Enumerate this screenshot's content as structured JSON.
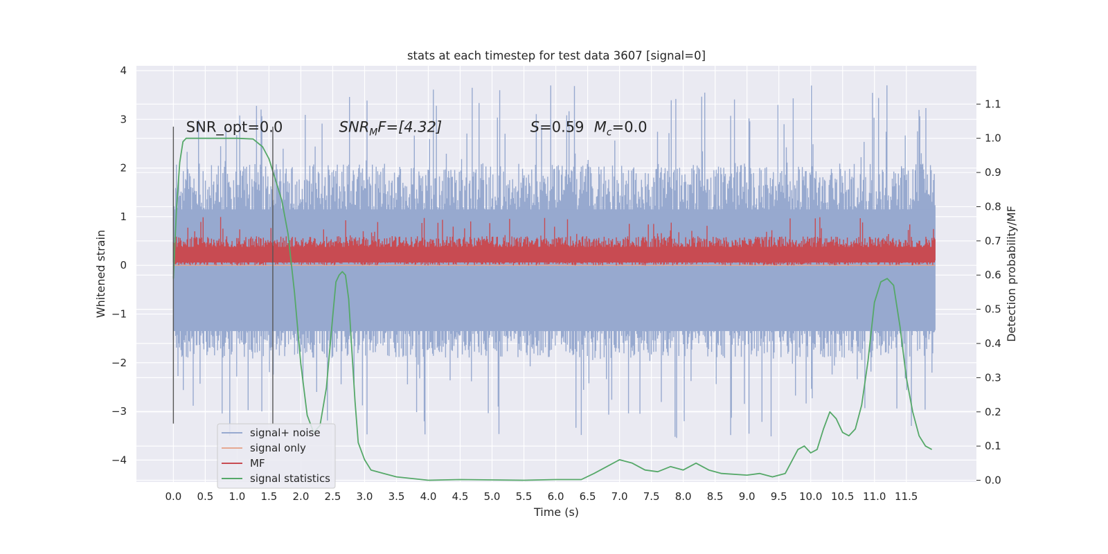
{
  "chart_data": {
    "type": "line",
    "title": "stats at each timestep for test data 3607 [signal=0]",
    "xlabel": "Time (s)",
    "ylabel": "Whitened strain",
    "y2label": "Detection probability/MF",
    "xlim": [
      -0.58,
      12.6
    ],
    "ylim": [
      -4.45,
      4.1
    ],
    "y2lim": [
      -0.005,
      1.212
    ],
    "grid": true,
    "x_ticks": [
      "0.0",
      "0.5",
      "1.0",
      "1.5",
      "2.0",
      "2.5",
      "3.0",
      "3.5",
      "4.0",
      "4.5",
      "5.0",
      "5.5",
      "6.0",
      "6.5",
      "7.0",
      "7.5",
      "8.0",
      "8.5",
      "9.0",
      "9.5",
      "10.0",
      "10.5",
      "11.0",
      "11.5"
    ],
    "y_ticks": [
      "4",
      "3",
      "2",
      "1",
      "0",
      "−1",
      "−2",
      "−3",
      "−4"
    ],
    "y2_ticks": [
      "1.1",
      "1.0",
      "0.9",
      "0.8",
      "0.7",
      "0.6",
      "0.5",
      "0.4",
      "0.3",
      "0.2",
      "0.1",
      "0.0"
    ],
    "annotations": {
      "snr_opt": "SNR_opt=0.0",
      "snr_mf_base": "SNR",
      "snr_mf_sub": "M",
      "snr_mf_rest": "F=[4.32]",
      "s_label": "S",
      "s_value": "=0.59",
      "mc_base": "M",
      "mc_sub": "c",
      "mc_value": "=0.0"
    },
    "vertical_lines_x": [
      0.0,
      1.56
    ],
    "legend_placement": "lower-left",
    "series": [
      {
        "name": "signal+ noise",
        "color": "#97a9cf",
        "time_range": [
          0.0,
          11.95
        ],
        "typical_range": [
          -1.9,
          2.1
        ],
        "extreme_min": -3.55,
        "extreme_max": 3.7
      },
      {
        "name": "signal only",
        "color": "#e6a891",
        "time_range": [
          0.0,
          11.95
        ],
        "values_constant": 0.0
      },
      {
        "name": "MF",
        "color": "#c84b52",
        "time_range": [
          0.0,
          11.95
        ],
        "typical_range": [
          0.0,
          0.6
        ],
        "extreme_max": 1.0
      },
      {
        "name": "signal statistics",
        "color": "#55a868",
        "axis": "right",
        "x": [
          0.0,
          0.05,
          0.1,
          0.15,
          0.2,
          0.3,
          0.5,
          0.75,
          1.0,
          1.25,
          1.4,
          1.5,
          1.6,
          1.7,
          1.8,
          1.9,
          2.0,
          2.1,
          2.2,
          2.3,
          2.4,
          2.5,
          2.55,
          2.6,
          2.65,
          2.7,
          2.75,
          2.8,
          2.85,
          2.9,
          3.0,
          3.1,
          3.2,
          3.3,
          3.5,
          4.0,
          4.5,
          5.0,
          5.5,
          6.0,
          6.4,
          6.6,
          6.8,
          7.0,
          7.2,
          7.4,
          7.6,
          7.8,
          8.0,
          8.2,
          8.4,
          8.6,
          9.0,
          9.2,
          9.4,
          9.6,
          9.8,
          9.9,
          10.0,
          10.1,
          10.2,
          10.3,
          10.4,
          10.5,
          10.6,
          10.7,
          10.8,
          10.9,
          11.0,
          11.1,
          11.2,
          11.3,
          11.4,
          11.5,
          11.6,
          11.7,
          11.8,
          11.9
        ],
        "values": [
          0.59,
          0.8,
          0.93,
          0.99,
          1.0,
          1.0,
          1.0,
          1.0,
          1.0,
          0.998,
          0.975,
          0.94,
          0.88,
          0.82,
          0.72,
          0.55,
          0.34,
          0.19,
          0.14,
          0.16,
          0.27,
          0.48,
          0.58,
          0.6,
          0.61,
          0.6,
          0.53,
          0.38,
          0.23,
          0.11,
          0.06,
          0.03,
          0.025,
          0.02,
          0.01,
          0.0,
          0.002,
          0.001,
          0.0,
          0.002,
          0.002,
          0.02,
          0.04,
          0.06,
          0.05,
          0.03,
          0.025,
          0.04,
          0.03,
          0.05,
          0.03,
          0.02,
          0.015,
          0.02,
          0.01,
          0.02,
          0.09,
          0.1,
          0.08,
          0.09,
          0.15,
          0.2,
          0.18,
          0.14,
          0.13,
          0.15,
          0.22,
          0.35,
          0.52,
          0.58,
          0.59,
          0.57,
          0.45,
          0.3,
          0.2,
          0.13,
          0.1,
          0.09
        ]
      }
    ]
  }
}
